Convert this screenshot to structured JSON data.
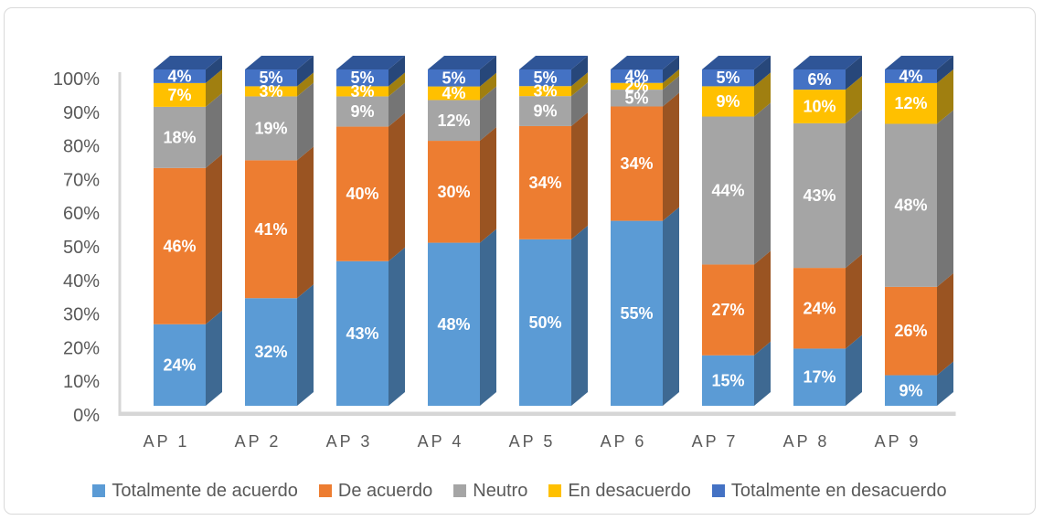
{
  "chart_data": {
    "type": "bar",
    "stacked": true,
    "style": "3d-column",
    "title": "",
    "categories": [
      "AP 1",
      "AP 2",
      "AP 3",
      "AP 4",
      "AP 5",
      "AP 6",
      "AP 7",
      "AP 8",
      "AP 9"
    ],
    "series": [
      {
        "name": "Totalmente de acuerdo",
        "color": "#5B9BD5",
        "side_color": "#3E6992",
        "values": [
          24,
          32,
          43,
          48,
          50,
          55,
          15,
          17,
          9
        ]
      },
      {
        "name": "De acuerdo",
        "color": "#ED7D31",
        "side_color": "#9A5422",
        "values": [
          46,
          41,
          40,
          30,
          34,
          34,
          27,
          24,
          26
        ]
      },
      {
        "name": "Neutro",
        "color": "#A5A5A5",
        "side_color": "#757575",
        "values": [
          18,
          19,
          9,
          12,
          9,
          5,
          44,
          43,
          48
        ]
      },
      {
        "name": "En desacuerdo",
        "color": "#FFC000",
        "side_color": "#A07F10",
        "values": [
          7,
          3,
          3,
          4,
          3,
          2,
          9,
          10,
          12
        ]
      },
      {
        "name": "Totalmente en desacuerdo",
        "color": "#4472C4",
        "side_color": "#27477A",
        "top_color": "#2F5597",
        "values": [
          4,
          5,
          5,
          5,
          5,
          4,
          5,
          6,
          4
        ]
      }
    ],
    "value_suffix": "%",
    "data_label_color": "#FFFFFF",
    "axis_text_color": "#595959",
    "axis_line_color": "#D6D6D6",
    "y_axis": {
      "range": [
        0,
        100
      ],
      "tick_labels": [
        "0%",
        "10%",
        "20%",
        "30%",
        "40%",
        "50%",
        "60%",
        "70%",
        "80%",
        "90%",
        "100%"
      ]
    },
    "legend_position": "bottom",
    "grid": false
  }
}
